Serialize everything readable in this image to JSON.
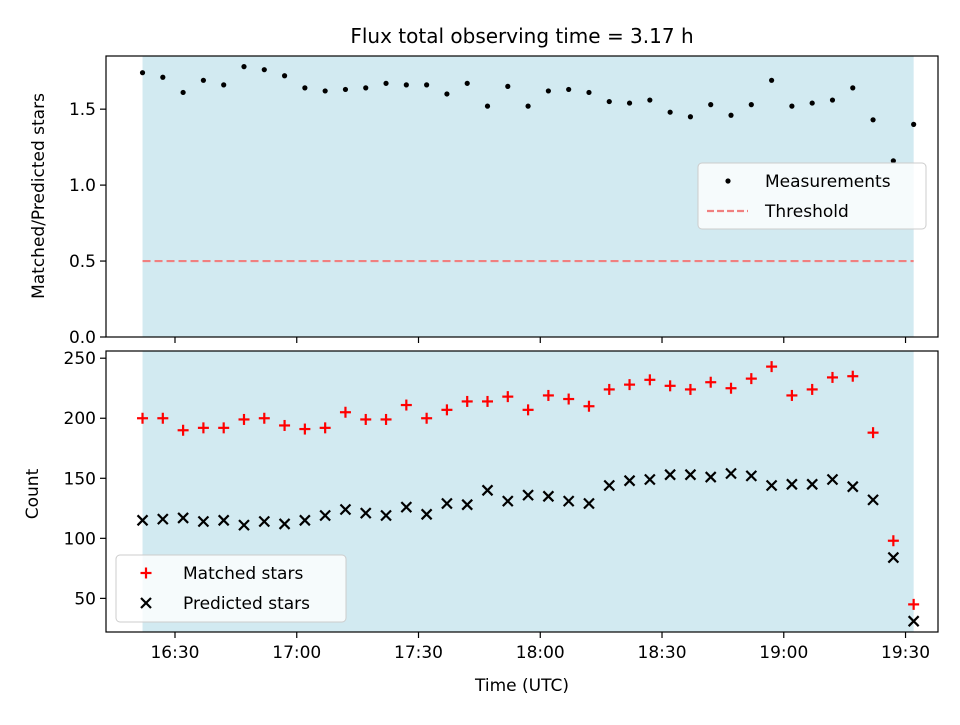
{
  "figure": {
    "title": "Flux total observing time = 3.17 h",
    "xlabel": "Time (UTC)"
  },
  "colors": {
    "shade": "#add8e6",
    "measurement": "#000000",
    "threshold": "#f08080",
    "matched": "#ff0000",
    "predicted": "#000000"
  },
  "chart_data": [
    {
      "type": "scatter",
      "ylabel": "Matched/Predicted stars",
      "xlim": [
        "16:13",
        "19:38"
      ],
      "ylim": [
        0,
        1.85
      ],
      "shaded_span": [
        "16:22",
        "19:32"
      ],
      "x_ticks": [
        "16:30",
        "17:00",
        "17:30",
        "18:00",
        "18:30",
        "19:00",
        "19:30"
      ],
      "x_tick_labels_shown": false,
      "y_ticks": [
        0.0,
        0.5,
        1.0,
        1.5
      ],
      "y_tick_labels": [
        "0.0",
        "0.5",
        "1.0",
        "1.5"
      ],
      "legend": {
        "placement": "center-right",
        "entries": [
          "Measurements",
          "Threshold"
        ]
      },
      "series": [
        {
          "name": "Measurements",
          "marker": "dot",
          "x": [
            "16:22",
            "16:27",
            "16:32",
            "16:37",
            "16:42",
            "16:47",
            "16:52",
            "16:57",
            "17:02",
            "17:07",
            "17:12",
            "17:17",
            "17:22",
            "17:27",
            "17:32",
            "17:37",
            "17:42",
            "17:47",
            "17:52",
            "17:57",
            "18:02",
            "18:07",
            "18:12",
            "18:17",
            "18:22",
            "18:27",
            "18:32",
            "18:37",
            "18:42",
            "18:47",
            "18:52",
            "18:57",
            "19:02",
            "19:07",
            "19:12",
            "19:17",
            "19:22",
            "19:27",
            "19:32"
          ],
          "y": [
            1.74,
            1.71,
            1.61,
            1.69,
            1.66,
            1.78,
            1.76,
            1.72,
            1.64,
            1.62,
            1.63,
            1.64,
            1.67,
            1.66,
            1.66,
            1.6,
            1.67,
            1.52,
            1.65,
            1.52,
            1.62,
            1.63,
            1.61,
            1.55,
            1.54,
            1.56,
            1.48,
            1.45,
            1.53,
            1.46,
            1.53,
            1.69,
            1.52,
            1.54,
            1.56,
            1.64,
            1.43,
            1.16,
            1.4
          ]
        },
        {
          "name": "Threshold",
          "style": "dashed",
          "x": [
            "16:22",
            "19:32"
          ],
          "y": [
            0.5,
            0.5
          ]
        }
      ]
    },
    {
      "type": "scatter",
      "ylabel": "Count",
      "xlim": [
        "16:13",
        "19:38"
      ],
      "ylim": [
        22,
        256
      ],
      "shaded_span": [
        "16:22",
        "19:32"
      ],
      "x_ticks": [
        "16:30",
        "17:00",
        "17:30",
        "18:00",
        "18:30",
        "19:00",
        "19:30"
      ],
      "x_tick_labels": [
        "16:30",
        "17:00",
        "17:30",
        "18:00",
        "18:30",
        "19:00",
        "19:30"
      ],
      "y_ticks": [
        50,
        100,
        150,
        200,
        250
      ],
      "y_tick_labels": [
        "50",
        "100",
        "150",
        "200",
        "250"
      ],
      "legend": {
        "placement": "lower-left",
        "entries": [
          "Matched stars",
          "Predicted stars"
        ]
      },
      "series": [
        {
          "name": "Matched stars",
          "marker": "plus",
          "x": [
            "16:22",
            "16:27",
            "16:32",
            "16:37",
            "16:42",
            "16:47",
            "16:52",
            "16:57",
            "17:02",
            "17:07",
            "17:12",
            "17:17",
            "17:22",
            "17:27",
            "17:32",
            "17:37",
            "17:42",
            "17:47",
            "17:52",
            "17:57",
            "18:02",
            "18:07",
            "18:12",
            "18:17",
            "18:22",
            "18:27",
            "18:32",
            "18:37",
            "18:42",
            "18:47",
            "18:52",
            "18:57",
            "19:02",
            "19:07",
            "19:12",
            "19:17",
            "19:22",
            "19:27",
            "19:32"
          ],
          "y": [
            200,
            200,
            190,
            192,
            192,
            199,
            200,
            194,
            191,
            192,
            205,
            199,
            199,
            211,
            200,
            207,
            214,
            214,
            218,
            207,
            219,
            216,
            210,
            224,
            228,
            232,
            227,
            224,
            230,
            225,
            233,
            243,
            219,
            224,
            234,
            235,
            188,
            98,
            45
          ]
        },
        {
          "name": "Predicted stars",
          "marker": "x",
          "x": [
            "16:22",
            "16:27",
            "16:32",
            "16:37",
            "16:42",
            "16:47",
            "16:52",
            "16:57",
            "17:02",
            "17:07",
            "17:12",
            "17:17",
            "17:22",
            "17:27",
            "17:32",
            "17:37",
            "17:42",
            "17:47",
            "17:52",
            "17:57",
            "18:02",
            "18:07",
            "18:12",
            "18:17",
            "18:22",
            "18:27",
            "18:32",
            "18:37",
            "18:42",
            "18:47",
            "18:52",
            "18:57",
            "19:02",
            "19:07",
            "19:12",
            "19:17",
            "19:22",
            "19:27",
            "19:32"
          ],
          "y": [
            115,
            116,
            117,
            114,
            115,
            111,
            114,
            112,
            115,
            119,
            124,
            121,
            119,
            126,
            120,
            129,
            128,
            140,
            131,
            136,
            135,
            131,
            129,
            144,
            148,
            149,
            153,
            153,
            151,
            154,
            152,
            144,
            145,
            145,
            149,
            143,
            132,
            84,
            31
          ]
        }
      ]
    }
  ]
}
